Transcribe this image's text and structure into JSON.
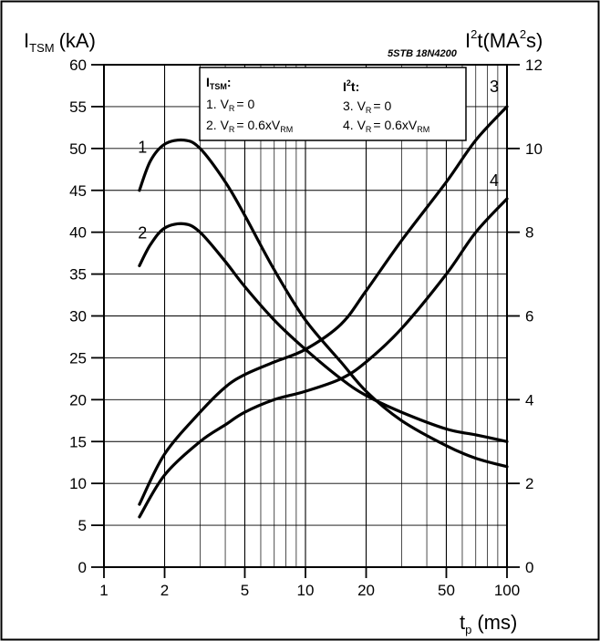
{
  "chart_data": {
    "type": "line",
    "reference_code": "5STB 18N4200",
    "x_axis": {
      "label_main": "t",
      "label_sub": "p",
      "label_unit": "(ms)",
      "scale": "log",
      "range": [
        1,
        100
      ],
      "tick_labels": [
        "1",
        "2",
        "5",
        "10",
        "20",
        "50",
        "100"
      ],
      "tick_values": [
        1,
        2,
        5,
        10,
        20,
        50,
        100
      ]
    },
    "y_left": {
      "label_main": "I",
      "label_sub": "TSM",
      "label_unit": "(kA)",
      "range": [
        0,
        60
      ],
      "tick_values": [
        0,
        5,
        10,
        15,
        20,
        25,
        30,
        35,
        40,
        45,
        50,
        55,
        60
      ],
      "tick_labels": [
        "0",
        "5",
        "10",
        "15",
        "20",
        "25",
        "30",
        "35",
        "40",
        "45",
        "50",
        "55",
        "60"
      ]
    },
    "y_right": {
      "label_main": "I",
      "label_sup1": "2",
      "label_mid": "t(MA",
      "label_sup2": "2",
      "label_end": "s)",
      "range": [
        0,
        12
      ],
      "tick_values": [
        0,
        2,
        4,
        6,
        8,
        10,
        12
      ],
      "tick_labels": [
        "0",
        "2",
        "4",
        "6",
        "8",
        "10",
        "12"
      ]
    },
    "grid": true,
    "legend": {
      "position": "top-center",
      "left_title": "I",
      "left_title_sub": "TSM",
      "left_title_end": ":",
      "left_items": [
        {
          "prefix": "1. V",
          "sub": "R",
          "rest": "= 0",
          "tail": "",
          "tail_sub": ""
        },
        {
          "prefix": "2. V",
          "sub": "R",
          "rest": "= 0.6xV",
          "tail": "",
          "tail_sub": "RM"
        }
      ],
      "right_title": "I",
      "right_title_sup": "2",
      "right_title_end": "t:",
      "right_items": [
        {
          "prefix": "3. V",
          "sub": "R",
          "rest": "= 0",
          "tail": "",
          "tail_sub": ""
        },
        {
          "prefix": "4. V",
          "sub": "R",
          "rest": "= 0.6xV",
          "tail": "",
          "tail_sub": "RM"
        }
      ]
    },
    "series": [
      {
        "label": "1",
        "axis": "left",
        "points": [
          [
            1.5,
            45
          ],
          [
            1.7,
            48.5
          ],
          [
            2.0,
            50.5
          ],
          [
            2.5,
            51
          ],
          [
            3.0,
            50
          ],
          [
            4.0,
            46
          ],
          [
            5.0,
            42
          ],
          [
            7.0,
            35.5
          ],
          [
            10.0,
            29.5
          ],
          [
            15.0,
            24.5
          ],
          [
            20.0,
            21
          ],
          [
            30.0,
            17.5
          ],
          [
            50.0,
            14.5
          ],
          [
            70.0,
            13
          ],
          [
            100.0,
            12
          ]
        ]
      },
      {
        "label": "2",
        "axis": "left",
        "points": [
          [
            1.5,
            36
          ],
          [
            1.7,
            38.5
          ],
          [
            2.0,
            40.5
          ],
          [
            2.5,
            41
          ],
          [
            3.0,
            40
          ],
          [
            4.0,
            36.5
          ],
          [
            5.0,
            33.5
          ],
          [
            7.0,
            29.5
          ],
          [
            10.0,
            26
          ],
          [
            15.0,
            22.5
          ],
          [
            20.0,
            20.5
          ],
          [
            30.0,
            18.5
          ],
          [
            50.0,
            16.5
          ],
          [
            70.0,
            15.8
          ],
          [
            100.0,
            15
          ]
        ]
      },
      {
        "label": "3",
        "axis": "right",
        "points": [
          [
            1.5,
            1.5
          ],
          [
            2.0,
            2.7
          ],
          [
            3.0,
            3.7
          ],
          [
            4.0,
            4.3
          ],
          [
            5.0,
            4.6
          ],
          [
            7.0,
            4.9
          ],
          [
            10.0,
            5.2
          ],
          [
            15.0,
            5.8
          ],
          [
            20.0,
            6.6
          ],
          [
            30.0,
            7.8
          ],
          [
            50.0,
            9.2
          ],
          [
            70.0,
            10.2
          ],
          [
            100.0,
            11
          ]
        ]
      },
      {
        "label": "4",
        "axis": "right",
        "points": [
          [
            1.5,
            1.2
          ],
          [
            2.0,
            2.2
          ],
          [
            3.0,
            3.0
          ],
          [
            4.0,
            3.4
          ],
          [
            5.0,
            3.7
          ],
          [
            7.0,
            4.0
          ],
          [
            10.0,
            4.2
          ],
          [
            15.0,
            4.5
          ],
          [
            20.0,
            4.9
          ],
          [
            30.0,
            5.7
          ],
          [
            50.0,
            7.0
          ],
          [
            70.0,
            8.0
          ],
          [
            100.0,
            8.8
          ]
        ]
      }
    ]
  }
}
